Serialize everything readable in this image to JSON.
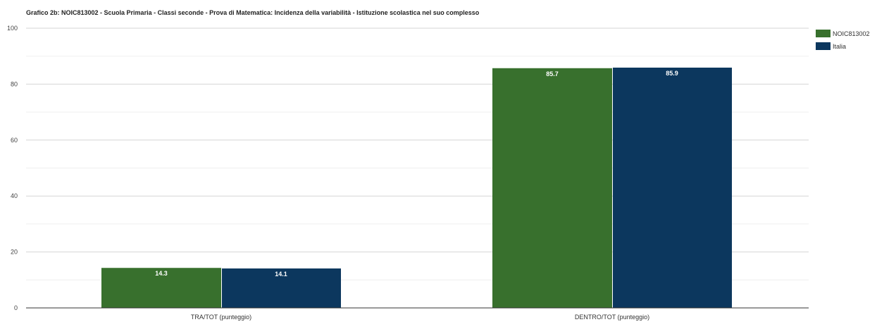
{
  "chart_data": {
    "type": "bar",
    "title": "Grafico 2b: NOIC813002 - Scuola Primaria - Classi seconde - Prova di Matematica: Incidenza della variabilità - Istituzione scolastica nel suo complesso",
    "categories": [
      "TRA/TOT (punteggio)",
      "DENTRO/TOT (punteggio)"
    ],
    "series": [
      {
        "name": "NOIC813002",
        "color": "#38702d",
        "values": [
          14.3,
          85.7
        ],
        "labels": [
          "14.3",
          "85.7"
        ]
      },
      {
        "name": "Italia",
        "color": "#0c375e",
        "values": [
          14.1,
          85.9
        ],
        "labels": [
          "14.1",
          "85.9"
        ]
      }
    ],
    "xlabel": "",
    "ylabel": "",
    "ylim": [
      0,
      100
    ],
    "yticks": [
      0,
      20,
      40,
      60,
      80,
      100
    ],
    "yticks_labels": [
      "0",
      "20",
      "40",
      "60",
      "80",
      "100"
    ],
    "minor_gridlines": [
      10,
      30,
      50,
      70,
      90
    ],
    "grid": true,
    "legend_position": "top-right"
  }
}
